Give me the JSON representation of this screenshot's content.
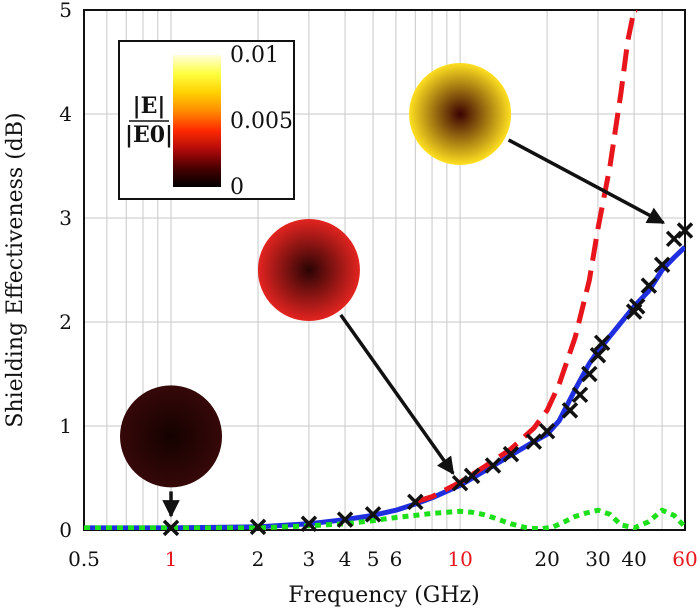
{
  "chart_data": {
    "type": "line",
    "xlabel": "Frequency (GHz)",
    "ylabel": "Shielding Effectiveness (dB)",
    "xscale": "log",
    "xlim": [
      0.5,
      60
    ],
    "ylim": [
      0,
      5
    ],
    "grid": true,
    "x_ticks": [
      {
        "value": 0.5,
        "label": "0.5",
        "color": "#111111"
      },
      {
        "value": 1,
        "label": "1",
        "color": "#e8161c"
      },
      {
        "value": 2,
        "label": "2",
        "color": "#111111"
      },
      {
        "value": 3,
        "label": "3",
        "color": "#111111"
      },
      {
        "value": 4,
        "label": "4",
        "color": "#111111"
      },
      {
        "value": 5,
        "label": "5",
        "color": "#111111"
      },
      {
        "value": 6,
        "label": "6",
        "color": "#111111"
      },
      {
        "value": 10,
        "label": "10",
        "color": "#e8161c"
      },
      {
        "value": 20,
        "label": "20",
        "color": "#111111"
      },
      {
        "value": 30,
        "label": "30",
        "color": "#111111"
      },
      {
        "value": 40,
        "label": "40",
        "color": "#111111"
      },
      {
        "value": 60,
        "label": "60",
        "color": "#e8161c"
      }
    ],
    "y_ticks": [
      {
        "value": 0,
        "label": "0"
      },
      {
        "value": 1,
        "label": "1"
      },
      {
        "value": 2,
        "label": "2"
      },
      {
        "value": 3,
        "label": "3"
      },
      {
        "value": 4,
        "label": "4"
      },
      {
        "value": 5,
        "label": "5"
      }
    ],
    "series": [
      {
        "style": "solid",
        "color": "#1f2fe0",
        "x": [
          0.5,
          1,
          2,
          3,
          4,
          5,
          6,
          7,
          8,
          10,
          12,
          15,
          18,
          20,
          22,
          25,
          28,
          30,
          35,
          40,
          45,
          50,
          55,
          60
        ],
        "y": [
          0.02,
          0.02,
          0.03,
          0.06,
          0.1,
          0.14,
          0.19,
          0.25,
          0.31,
          0.43,
          0.56,
          0.72,
          0.85,
          0.92,
          1.05,
          1.35,
          1.6,
          1.72,
          1.95,
          2.15,
          2.3,
          2.5,
          2.62,
          2.72
        ]
      },
      {
        "style": "dashed",
        "color": "#e8161c",
        "x": [
          7,
          8,
          10,
          12,
          15,
          18,
          20,
          22,
          25,
          28,
          30,
          33,
          36,
          38,
          40,
          41
        ],
        "y": [
          0.27,
          0.32,
          0.46,
          0.6,
          0.78,
          0.98,
          1.15,
          1.4,
          1.85,
          2.4,
          2.9,
          3.5,
          4.2,
          4.7,
          5.0,
          5.0
        ]
      },
      {
        "style": "dotted",
        "color": "#1ee01a",
        "x": [
          0.5,
          1,
          2,
          3,
          4,
          5,
          6,
          7,
          8,
          9,
          10,
          11,
          12,
          13,
          15,
          17,
          19,
          21,
          23,
          25,
          27,
          30,
          33,
          36,
          40,
          45,
          50,
          55,
          60
        ],
        "y": [
          0.02,
          0.02,
          0.02,
          0.04,
          0.06,
          0.09,
          0.12,
          0.14,
          0.16,
          0.17,
          0.18,
          0.17,
          0.15,
          0.12,
          0.06,
          0.02,
          0.01,
          0.03,
          0.08,
          0.13,
          0.16,
          0.19,
          0.15,
          0.05,
          0.02,
          0.08,
          0.19,
          0.14,
          0.03
        ]
      },
      {
        "style": "markers",
        "marker": "x",
        "color": "#111111",
        "x": [
          1,
          2,
          3,
          4,
          5,
          7,
          10,
          11,
          13,
          15,
          18,
          20,
          24,
          26,
          28,
          30,
          31,
          40,
          41,
          45,
          50,
          55,
          60
        ],
        "y": [
          0.02,
          0.03,
          0.06,
          0.1,
          0.15,
          0.27,
          0.45,
          0.52,
          0.62,
          0.73,
          0.85,
          0.95,
          1.15,
          1.3,
          1.5,
          1.68,
          1.8,
          2.1,
          2.15,
          2.35,
          2.55,
          2.8,
          2.88
        ]
      }
    ],
    "insets": [
      {
        "x": 1.0,
        "y": 0.9,
        "target_x": 1,
        "target_y": 0.02,
        "center_color": "#140200",
        "edge_color": "#360808"
      },
      {
        "x": 3.0,
        "y": 2.5,
        "target_x": 10,
        "target_y": 0.45,
        "center_color": "#2a0404",
        "edge_color": "#e32420"
      },
      {
        "x": 10.0,
        "y": 4.0,
        "target_x": 55,
        "target_y": 2.9,
        "center_color": "#3a0202",
        "edge_color": "#ffe020"
      }
    ],
    "colorbar": {
      "label_numerator": "|E|",
      "label_denominator": "|E0|",
      "ticks": [
        {
          "value": 0.01,
          "label": "0.01"
        },
        {
          "value": 0.005,
          "label": "0.005"
        },
        {
          "value": 0,
          "label": "0"
        }
      ],
      "range": [
        0,
        0.01
      ],
      "colors": [
        "#000000",
        "#4a0000",
        "#b20a0a",
        "#ff2a00",
        "#ff8a00",
        "#ffd000",
        "#ffff40",
        "#ffffdc"
      ]
    }
  }
}
